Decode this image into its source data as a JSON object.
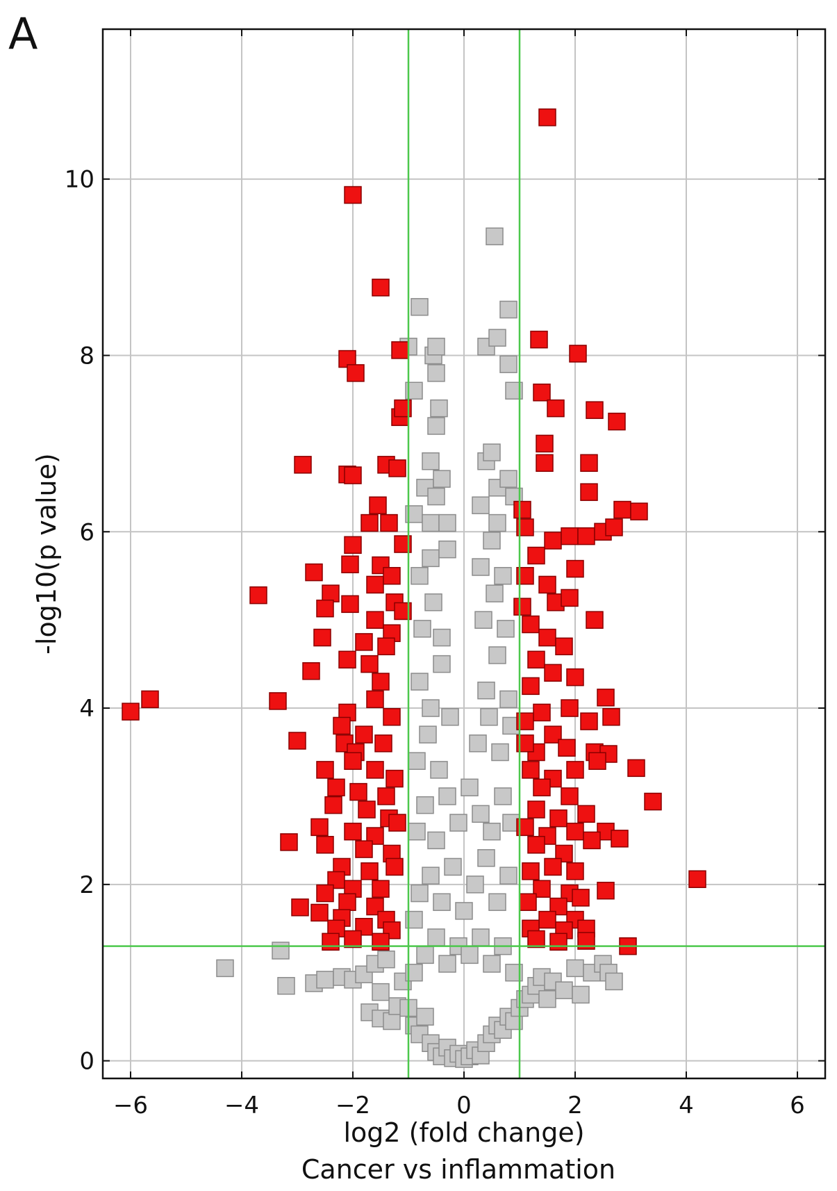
{
  "panel_label": "A",
  "chart_data": {
    "type": "scatter",
    "title": "",
    "xlabel": "log2 (fold change)",
    "xlabel_sub": "Cancer vs inflammation",
    "ylabel": "-log10(p value)",
    "xlim": [
      -6.5,
      6.5
    ],
    "ylim": [
      -0.2,
      11.7
    ],
    "xticks": [
      -6,
      -4,
      -2,
      0,
      2,
      4,
      6
    ],
    "xtick_labels": [
      "−6",
      "−4",
      "−2",
      "0",
      "2",
      "4",
      "6"
    ],
    "yticks": [
      0,
      2,
      4,
      6,
      8,
      10
    ],
    "ytick_labels": [
      "0",
      "2",
      "4",
      "6",
      "8",
      "10"
    ],
    "grid": true,
    "thresholds": {
      "log2fc": [
        -1,
        1
      ],
      "neg_log10_p": 1.3,
      "color": "#4cc84c"
    },
    "colors": {
      "significant": "#ee1111",
      "significant_edge": "#8a0000",
      "not_significant": "#c8c8c8",
      "not_significant_edge": "#8c8c8c"
    },
    "series": [
      {
        "color": "#c8c8c8",
        "points": [
          [
            -4.3,
            1.05
          ],
          [
            -3.3,
            1.25
          ],
          [
            -3.2,
            0.85
          ],
          [
            -2.7,
            0.88
          ],
          [
            -2.5,
            0.92
          ],
          [
            -2.2,
            0.95
          ],
          [
            -2.0,
            0.92
          ],
          [
            -1.8,
            0.98
          ],
          [
            -1.6,
            1.1
          ],
          [
            -1.4,
            1.15
          ],
          [
            -1.7,
            0.55
          ],
          [
            -1.5,
            0.48
          ],
          [
            -1.3,
            0.45
          ],
          [
            -1.2,
            0.62
          ],
          [
            -1.5,
            0.78
          ],
          [
            -1.1,
            0.9
          ],
          [
            -1.0,
            0.6
          ],
          [
            -0.9,
            0.4
          ],
          [
            -0.8,
            0.3
          ],
          [
            -0.7,
            0.5
          ],
          [
            -0.6,
            0.2
          ],
          [
            -0.5,
            0.1
          ],
          [
            -0.4,
            0.05
          ],
          [
            -0.3,
            0.15
          ],
          [
            -0.2,
            0.03
          ],
          [
            -0.1,
            0.08
          ],
          [
            0.0,
            0.02
          ],
          [
            0.1,
            0.05
          ],
          [
            0.2,
            0.12
          ],
          [
            0.3,
            0.06
          ],
          [
            0.4,
            0.2
          ],
          [
            0.5,
            0.3
          ],
          [
            0.6,
            0.4
          ],
          [
            0.7,
            0.35
          ],
          [
            0.8,
            0.5
          ],
          [
            0.9,
            0.45
          ],
          [
            1.0,
            0.6
          ],
          [
            1.1,
            0.7
          ],
          [
            1.2,
            0.75
          ],
          [
            1.3,
            0.85
          ],
          [
            1.4,
            0.95
          ],
          [
            1.5,
            0.7
          ],
          [
            1.6,
            0.9
          ],
          [
            1.8,
            0.8
          ],
          [
            2.0,
            1.05
          ],
          [
            2.1,
            0.75
          ],
          [
            2.3,
            1.0
          ],
          [
            2.5,
            1.1
          ],
          [
            2.6,
            1.0
          ],
          [
            2.7,
            0.9
          ],
          [
            -0.9,
            1.0
          ],
          [
            -0.7,
            1.2
          ],
          [
            -0.5,
            1.4
          ],
          [
            -0.3,
            1.1
          ],
          [
            -0.1,
            1.3
          ],
          [
            0.1,
            1.2
          ],
          [
            0.3,
            1.4
          ],
          [
            0.5,
            1.1
          ],
          [
            0.7,
            1.3
          ],
          [
            0.9,
            1.0
          ],
          [
            -0.9,
            1.6
          ],
          [
            -0.8,
            1.9
          ],
          [
            -0.6,
            2.1
          ],
          [
            -0.4,
            1.8
          ],
          [
            -0.2,
            2.2
          ],
          [
            0.0,
            1.7
          ],
          [
            0.2,
            2.0
          ],
          [
            0.4,
            2.3
          ],
          [
            0.6,
            1.8
          ],
          [
            0.8,
            2.1
          ],
          [
            -0.85,
            2.6
          ],
          [
            -0.7,
            2.9
          ],
          [
            -0.5,
            2.5
          ],
          [
            -0.3,
            3.0
          ],
          [
            -0.1,
            2.7
          ],
          [
            0.1,
            3.1
          ],
          [
            0.3,
            2.8
          ],
          [
            0.5,
            2.6
          ],
          [
            0.7,
            3.0
          ],
          [
            0.85,
            2.7
          ],
          [
            -0.85,
            3.4
          ],
          [
            -0.65,
            3.7
          ],
          [
            -0.45,
            3.3
          ],
          [
            -0.25,
            3.9
          ],
          [
            0.25,
            3.6
          ],
          [
            0.45,
            3.9
          ],
          [
            0.65,
            3.5
          ],
          [
            0.85,
            3.8
          ],
          [
            -0.8,
            4.3
          ],
          [
            -0.6,
            4.0
          ],
          [
            -0.4,
            4.5
          ],
          [
            0.4,
            4.2
          ],
          [
            0.6,
            4.6
          ],
          [
            0.8,
            4.1
          ],
          [
            -0.75,
            4.9
          ],
          [
            -0.55,
            5.2
          ],
          [
            -0.4,
            4.8
          ],
          [
            0.35,
            5.0
          ],
          [
            0.55,
            5.3
          ],
          [
            0.75,
            4.9
          ],
          [
            -0.8,
            5.5
          ],
          [
            -0.6,
            5.7
          ],
          [
            -0.3,
            5.8
          ],
          [
            0.3,
            5.6
          ],
          [
            0.5,
            5.9
          ],
          [
            0.7,
            5.5
          ],
          [
            -0.9,
            6.2
          ],
          [
            -0.6,
            6.1
          ],
          [
            -0.3,
            6.1
          ],
          [
            0.3,
            6.3
          ],
          [
            0.6,
            6.1
          ],
          [
            0.9,
            6.4
          ],
          [
            -0.7,
            6.5
          ],
          [
            -0.5,
            6.4
          ],
          [
            0.6,
            6.5
          ],
          [
            0.8,
            6.6
          ],
          [
            -0.6,
            6.8
          ],
          [
            -0.4,
            6.6
          ],
          [
            0.4,
            6.8
          ],
          [
            0.5,
            6.9
          ],
          [
            -0.5,
            7.2
          ],
          [
            -0.45,
            7.4
          ],
          [
            -0.9,
            7.6
          ],
          [
            0.9,
            7.6
          ],
          [
            -0.5,
            7.8
          ],
          [
            -0.55,
            8.0
          ],
          [
            -1.0,
            8.1
          ],
          [
            0.4,
            8.1
          ],
          [
            0.6,
            8.2
          ],
          [
            0.8,
            7.9
          ],
          [
            -0.5,
            8.1
          ],
          [
            -0.8,
            8.55
          ],
          [
            0.8,
            8.52
          ],
          [
            0.55,
            9.35
          ]
        ]
      },
      {
        "color": "#ee1111",
        "points": [
          [
            1.5,
            10.7
          ],
          [
            -2.0,
            9.82
          ],
          [
            -1.5,
            8.77
          ],
          [
            1.35,
            8.18
          ],
          [
            -1.15,
            8.06
          ],
          [
            -2.1,
            7.96
          ],
          [
            2.05,
            8.02
          ],
          [
            -1.95,
            7.8
          ],
          [
            1.4,
            7.58
          ],
          [
            1.65,
            7.4
          ],
          [
            2.35,
            7.38
          ],
          [
            2.75,
            7.25
          ],
          [
            -1.15,
            7.3
          ],
          [
            -1.1,
            7.4
          ],
          [
            1.45,
            7.0
          ],
          [
            1.45,
            6.78
          ],
          [
            -2.9,
            6.76
          ],
          [
            -2.1,
            6.65
          ],
          [
            -2.0,
            6.64
          ],
          [
            2.25,
            6.78
          ],
          [
            -1.4,
            6.76
          ],
          [
            -1.2,
            6.72
          ],
          [
            2.25,
            6.45
          ],
          [
            2.85,
            6.25
          ],
          [
            3.15,
            6.23
          ],
          [
            1.05,
            6.25
          ],
          [
            -1.55,
            6.3
          ],
          [
            -1.35,
            6.1
          ],
          [
            -1.7,
            6.1
          ],
          [
            1.1,
            6.05
          ],
          [
            1.6,
            5.9
          ],
          [
            1.9,
            5.95
          ],
          [
            2.2,
            5.95
          ],
          [
            2.5,
            6.0
          ],
          [
            2.7,
            6.05
          ],
          [
            -2.0,
            5.85
          ],
          [
            -1.1,
            5.86
          ],
          [
            -2.05,
            5.63
          ],
          [
            -1.5,
            5.62
          ],
          [
            1.3,
            5.73
          ],
          [
            2.0,
            5.58
          ],
          [
            -2.7,
            5.54
          ],
          [
            -1.6,
            5.4
          ],
          [
            -1.3,
            5.5
          ],
          [
            1.1,
            5.5
          ],
          [
            1.5,
            5.4
          ],
          [
            -3.7,
            5.28
          ],
          [
            -2.4,
            5.3
          ],
          [
            -2.05,
            5.18
          ],
          [
            -2.5,
            5.13
          ],
          [
            -1.25,
            5.2
          ],
          [
            -1.1,
            5.1
          ],
          [
            1.05,
            5.15
          ],
          [
            1.65,
            5.2
          ],
          [
            1.9,
            5.25
          ],
          [
            2.35,
            5.0
          ],
          [
            -1.6,
            5.0
          ],
          [
            -1.3,
            4.85
          ],
          [
            1.2,
            4.95
          ],
          [
            1.5,
            4.8
          ],
          [
            -2.55,
            4.8
          ],
          [
            -1.8,
            4.75
          ],
          [
            -1.4,
            4.7
          ],
          [
            1.8,
            4.7
          ],
          [
            -2.1,
            4.55
          ],
          [
            -1.7,
            4.5
          ],
          [
            1.3,
            4.55
          ],
          [
            1.6,
            4.4
          ],
          [
            -2.75,
            4.42
          ],
          [
            -1.5,
            4.3
          ],
          [
            2.0,
            4.35
          ],
          [
            1.2,
            4.25
          ],
          [
            -5.65,
            4.1
          ],
          [
            -6.0,
            3.96
          ],
          [
            -3.35,
            4.08
          ],
          [
            -2.1,
            3.95
          ],
          [
            -1.6,
            4.1
          ],
          [
            -1.3,
            3.9
          ],
          [
            2.55,
            4.12
          ],
          [
            2.65,
            3.9
          ],
          [
            2.25,
            3.85
          ],
          [
            1.9,
            4.0
          ],
          [
            1.4,
            3.95
          ],
          [
            1.1,
            3.85
          ],
          [
            -2.2,
            3.8
          ],
          [
            -1.8,
            3.7
          ],
          [
            -1.45,
            3.6
          ],
          [
            1.6,
            3.7
          ],
          [
            1.3,
            3.5
          ],
          [
            1.1,
            3.6
          ],
          [
            -3.0,
            3.63
          ],
          [
            -2.15,
            3.6
          ],
          [
            -1.95,
            3.5
          ],
          [
            1.85,
            3.55
          ],
          [
            2.35,
            3.5
          ],
          [
            2.6,
            3.48
          ],
          [
            -2.0,
            3.4
          ],
          [
            -1.6,
            3.3
          ],
          [
            -1.25,
            3.2
          ],
          [
            1.2,
            3.3
          ],
          [
            1.6,
            3.2
          ],
          [
            2.0,
            3.3
          ],
          [
            2.4,
            3.4
          ],
          [
            -2.5,
            3.3
          ],
          [
            -2.3,
            3.1
          ],
          [
            -1.9,
            3.05
          ],
          [
            -1.4,
            3.0
          ],
          [
            1.4,
            3.1
          ],
          [
            1.9,
            3.0
          ],
          [
            3.1,
            3.32
          ],
          [
            -2.35,
            2.9
          ],
          [
            -1.75,
            2.85
          ],
          [
            -1.35,
            2.75
          ],
          [
            1.3,
            2.85
          ],
          [
            1.7,
            2.75
          ],
          [
            2.2,
            2.8
          ],
          [
            3.4,
            2.94
          ],
          [
            -2.0,
            2.6
          ],
          [
            -1.6,
            2.55
          ],
          [
            -1.2,
            2.7
          ],
          [
            1.1,
            2.65
          ],
          [
            1.5,
            2.55
          ],
          [
            2.0,
            2.6
          ],
          [
            2.55,
            2.6
          ],
          [
            -2.6,
            2.65
          ],
          [
            -2.5,
            2.45
          ],
          [
            -3.15,
            2.48
          ],
          [
            -1.8,
            2.4
          ],
          [
            -1.3,
            2.35
          ],
          [
            1.3,
            2.45
          ],
          [
            1.8,
            2.35
          ],
          [
            2.3,
            2.5
          ],
          [
            2.8,
            2.52
          ],
          [
            -2.2,
            2.2
          ],
          [
            -1.7,
            2.15
          ],
          [
            -1.25,
            2.2
          ],
          [
            1.2,
            2.15
          ],
          [
            1.6,
            2.2
          ],
          [
            2.0,
            2.15
          ],
          [
            4.2,
            2.06
          ],
          [
            -2.3,
            2.05
          ],
          [
            -2.0,
            1.95
          ],
          [
            -1.5,
            1.95
          ],
          [
            1.4,
            1.95
          ],
          [
            1.9,
            1.9
          ],
          [
            2.55,
            1.93
          ],
          [
            -2.5,
            1.9
          ],
          [
            -2.1,
            1.8
          ],
          [
            -1.6,
            1.75
          ],
          [
            1.15,
            1.8
          ],
          [
            1.7,
            1.75
          ],
          [
            2.1,
            1.85
          ],
          [
            -2.95,
            1.74
          ],
          [
            -2.6,
            1.68
          ],
          [
            -2.2,
            1.62
          ],
          [
            -1.4,
            1.6
          ],
          [
            1.5,
            1.6
          ],
          [
            2.0,
            1.6
          ],
          [
            -2.3,
            1.5
          ],
          [
            -1.8,
            1.52
          ],
          [
            -1.3,
            1.48
          ],
          [
            1.2,
            1.5
          ],
          [
            1.8,
            1.48
          ],
          [
            2.2,
            1.5
          ],
          [
            -2.4,
            1.35
          ],
          [
            -2.0,
            1.38
          ],
          [
            -1.5,
            1.35
          ],
          [
            1.3,
            1.38
          ],
          [
            1.7,
            1.35
          ],
          [
            2.2,
            1.36
          ],
          [
            2.95,
            1.3
          ]
        ]
      }
    ]
  }
}
